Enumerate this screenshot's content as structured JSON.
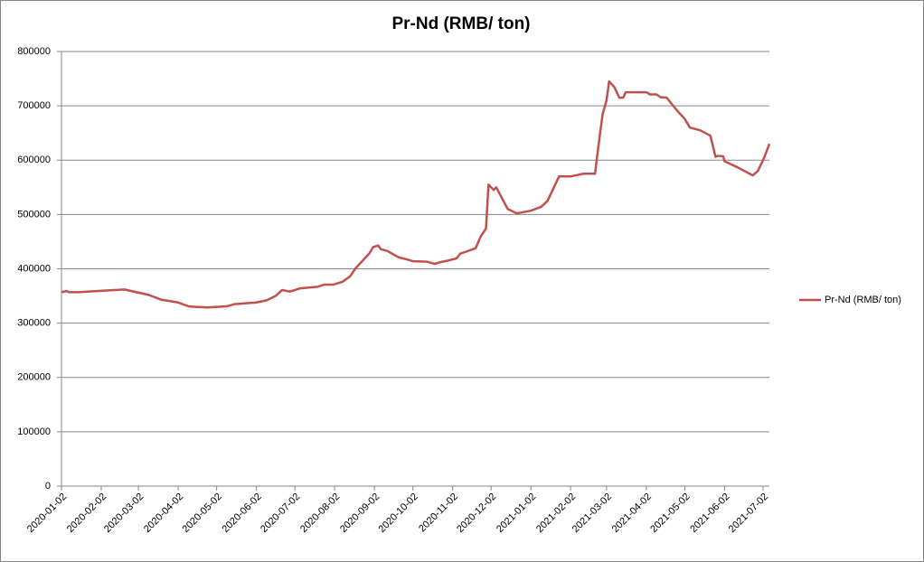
{
  "chart_data": {
    "type": "line",
    "title": "Pr-Nd (RMB/ ton)",
    "x": [
      "2020-01-02",
      "2020-01-06",
      "2020-01-08",
      "2020-01-15",
      "2020-02-20",
      "2020-03-10",
      "2020-03-20",
      "2020-04-02",
      "2020-04-10",
      "2020-04-15",
      "2020-04-25",
      "2020-05-10",
      "2020-05-16",
      "2020-06-02",
      "2020-06-10",
      "2020-06-17",
      "2020-06-22",
      "2020-06-28",
      "2020-07-06",
      "2020-07-20",
      "2020-07-25",
      "2020-08-01",
      "2020-08-08",
      "2020-08-14",
      "2020-08-18",
      "2020-08-25",
      "2020-08-29",
      "2020-09-01",
      "2020-09-05",
      "2020-09-07",
      "2020-09-12",
      "2020-09-21",
      "2020-09-28",
      "2020-10-02",
      "2020-10-13",
      "2020-10-19",
      "2020-10-23",
      "2020-10-29",
      "2020-11-05",
      "2020-11-08",
      "2020-11-13",
      "2020-11-20",
      "2020-11-24",
      "2020-11-28",
      "2020-11-30",
      "2020-12-04",
      "2020-12-06",
      "2020-12-15",
      "2020-12-22",
      "2021-01-02",
      "2021-01-10",
      "2021-01-15",
      "2021-01-24",
      "2021-02-02",
      "2021-02-12",
      "2021-02-21",
      "2021-02-25",
      "2021-02-27",
      "2021-03-02",
      "2021-03-04",
      "2021-03-08",
      "2021-03-12",
      "2021-03-15",
      "2021-03-17",
      "2021-04-02",
      "2021-04-05",
      "2021-04-10",
      "2021-04-13",
      "2021-04-18",
      "2021-04-23",
      "2021-04-28",
      "2021-05-02",
      "2021-05-06",
      "2021-05-14",
      "2021-05-22",
      "2021-05-26",
      "2021-05-28",
      "2021-06-01",
      "2021-06-02",
      "2021-06-12",
      "2021-06-24",
      "2021-06-28",
      "2021-07-03",
      "2021-07-07"
    ],
    "series": [
      {
        "name": "Pr-Nd (RMB/ ton)",
        "color": "#c0504d",
        "values": [
          357000,
          359000,
          357000,
          357000,
          362000,
          352000,
          343000,
          338000,
          331000,
          330000,
          329000,
          331000,
          335000,
          338000,
          342000,
          350000,
          361000,
          358000,
          364000,
          367000,
          371000,
          371000,
          376000,
          386000,
          400000,
          418000,
          428000,
          440000,
          443000,
          436000,
          433000,
          421000,
          417000,
          414000,
          413000,
          409000,
          412000,
          415000,
          419000,
          428000,
          432000,
          438000,
          460000,
          474000,
          555000,
          545000,
          550000,
          510000,
          502000,
          507000,
          514000,
          525000,
          570000,
          570000,
          575000,
          575000,
          650000,
          685000,
          710000,
          745000,
          735000,
          715000,
          715000,
          725000,
          725000,
          721000,
          721000,
          716000,
          715000,
          700000,
          686000,
          676000,
          660000,
          655000,
          645000,
          606000,
          608000,
          607000,
          598000,
          587000,
          572000,
          580000,
          605000,
          630000
        ]
      }
    ],
    "xlim": [
      "2020-01-02",
      "2021-07-07"
    ],
    "xticks": [
      "2020-01-02",
      "2020-02-02",
      "2020-03-02",
      "2020-04-02",
      "2020-05-02",
      "2020-06-02",
      "2020-07-02",
      "2020-08-02",
      "2020-09-02",
      "2020-10-02",
      "2020-11-02",
      "2020-12-02",
      "2021-01-02",
      "2021-02-02",
      "2021-03-02",
      "2021-04-02",
      "2021-05-02",
      "2021-06-02",
      "2021-07-02"
    ],
    "ylim": [
      0,
      800000
    ],
    "yticks": [
      0,
      100000,
      200000,
      300000,
      400000,
      500000,
      600000,
      700000,
      800000
    ],
    "grid": true,
    "legend": "right"
  }
}
